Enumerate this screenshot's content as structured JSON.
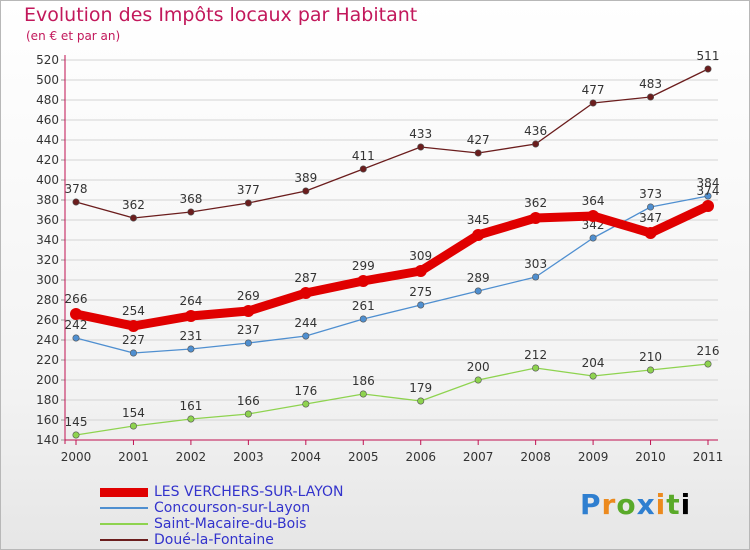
{
  "title": "Evolution des Impôts locaux par Habitant",
  "subtitle": "(en € et par an)",
  "logo_text": "Proxiti",
  "chart_data": {
    "type": "line",
    "title": "Evolution des Impôts locaux par Habitant",
    "subtitle": "(en € et par an)",
    "xlabel": "",
    "ylabel": "",
    "x": [
      "2000",
      "2001",
      "2002",
      "2003",
      "2004",
      "2005",
      "2006",
      "2007",
      "2008",
      "2009",
      "2010",
      "2011"
    ],
    "ylim": [
      140,
      520
    ],
    "yticks": [
      140,
      160,
      180,
      200,
      220,
      240,
      260,
      280,
      300,
      320,
      340,
      360,
      380,
      400,
      420,
      440,
      460,
      480,
      500,
      520
    ],
    "grid": "horizontal",
    "legend_position": "bottom-left",
    "series": [
      {
        "name": "LES VERCHERS-SUR-LAYON",
        "color": "#e00000",
        "values": [
          266,
          254,
          264,
          269,
          287,
          299,
          309,
          345,
          362,
          364,
          347,
          374
        ]
      },
      {
        "name": "Concourson-sur-Layon",
        "color": "#4f8fd0",
        "values": [
          242,
          227,
          231,
          237,
          244,
          261,
          275,
          289,
          303,
          342,
          373,
          384
        ]
      },
      {
        "name": "Saint-Macaire-du-Bois",
        "color": "#8ed34f",
        "values": [
          145,
          154,
          161,
          166,
          176,
          186,
          179,
          200,
          212,
          204,
          210,
          216
        ]
      },
      {
        "name": "Doué-la-Fontaine",
        "color": "#6b1d1d",
        "values": [
          378,
          362,
          368,
          377,
          389,
          411,
          433,
          427,
          436,
          477,
          483,
          511
        ]
      }
    ]
  }
}
